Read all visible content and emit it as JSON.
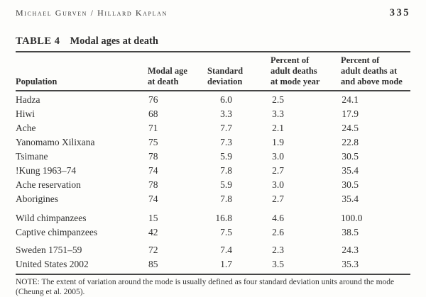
{
  "header": {
    "running_head": "Michael Gurven / Hillard Kaplan",
    "page_number": "335"
  },
  "table": {
    "label": "TABLE 4",
    "title": "Modal ages at death",
    "columns": {
      "population": "Population",
      "modal_age": "Modal age\nat death",
      "std_dev": "Standard\ndeviation",
      "pct_at_mode": "Percent of\nadult deaths\nat mode year",
      "pct_above_mode": "Percent of\nadult deaths at\nand above mode"
    },
    "rows": [
      {
        "population": "Hadza",
        "modal_age": "76",
        "std_dev": "6.0",
        "pct_at_mode": "2.5",
        "pct_above_mode": "24.1"
      },
      {
        "population": "Hiwi",
        "modal_age": "68",
        "std_dev": "3.3",
        "pct_at_mode": "3.3",
        "pct_above_mode": "17.9"
      },
      {
        "population": "Ache",
        "modal_age": "71",
        "std_dev": "7.7",
        "pct_at_mode": "2.1",
        "pct_above_mode": "24.5"
      },
      {
        "population": "Yanomamo Xilixana",
        "modal_age": "75",
        "std_dev": "7.3",
        "pct_at_mode": "1.9",
        "pct_above_mode": "22.8"
      },
      {
        "population": "Tsimane",
        "modal_age": "78",
        "std_dev": "5.9",
        "pct_at_mode": "3.0",
        "pct_above_mode": "30.5"
      },
      {
        "population": "!Kung 1963–74",
        "modal_age": "74",
        "std_dev": "7.8",
        "pct_at_mode": "2.7",
        "pct_above_mode": "35.4"
      },
      {
        "population": "Ache reservation",
        "modal_age": "78",
        "std_dev": "5.9",
        "pct_at_mode": "3.0",
        "pct_above_mode": "30.5"
      },
      {
        "population": "Aborigines",
        "modal_age": "74",
        "std_dev": "7.8",
        "pct_at_mode": "2.7",
        "pct_above_mode": "35.4"
      },
      {
        "population": "Wild chimpanzees",
        "modal_age": "15",
        "std_dev": "16.8",
        "pct_at_mode": "4.6",
        "pct_above_mode": "100.0"
      },
      {
        "population": "Captive chimpanzees",
        "modal_age": "42",
        "std_dev": "7.5",
        "pct_at_mode": "2.6",
        "pct_above_mode": "38.5"
      },
      {
        "population": "Sweden 1751–59",
        "modal_age": "72",
        "std_dev": "7.4",
        "pct_at_mode": "2.3",
        "pct_above_mode": "24.3"
      },
      {
        "population": "United States 2002",
        "modal_age": "85",
        "std_dev": "1.7",
        "pct_at_mode": "3.5",
        "pct_above_mode": "35.3"
      }
    ],
    "note": "NOTE: The extent of variation around the mode is usually defined as four standard deviation units around the mode (Cheung et al. 2005)."
  },
  "colors": {
    "ink": "#2f2f2f",
    "rule": "#454545",
    "background": "#fdfdfb"
  }
}
